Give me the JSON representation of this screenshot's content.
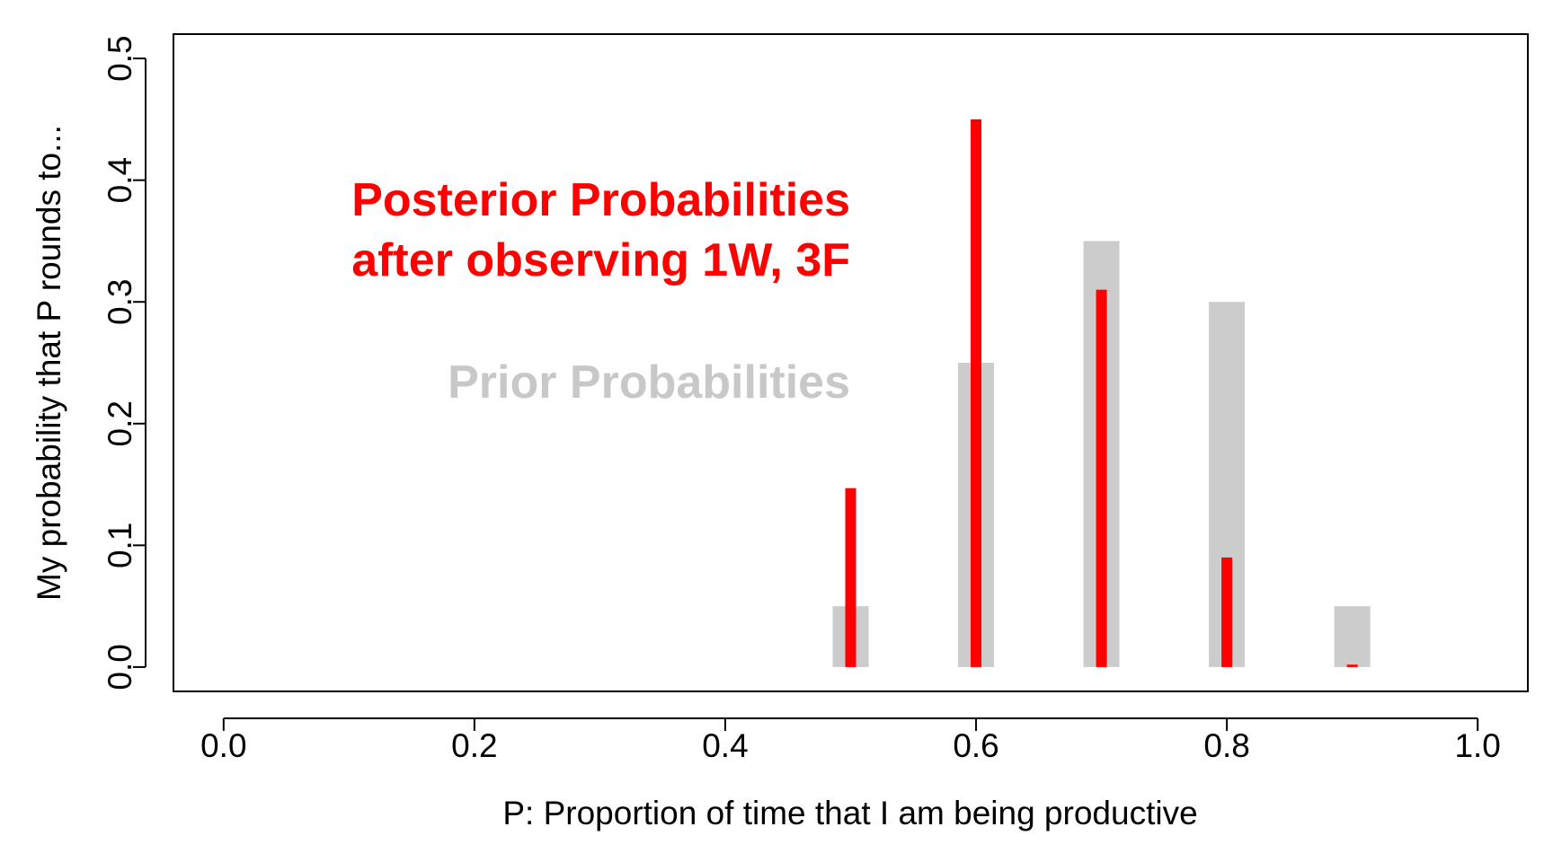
{
  "chart_data": {
    "type": "bar",
    "x": [
      0.5,
      0.6,
      0.7,
      0.8,
      0.9
    ],
    "series": [
      {
        "name": "Prior Probabilities",
        "values": [
          0.05,
          0.25,
          0.35,
          0.3,
          0.05
        ]
      },
      {
        "name": "Posterior Probabilities after observing 1W, 3F",
        "values": [
          0.147,
          0.45,
          0.31,
          0.09,
          0.002
        ]
      }
    ],
    "xlabel": "P: Proportion of time that I am being productive",
    "ylabel": "My probability that P rounds to...",
    "xlim": [
      -0.04,
      1.04
    ],
    "ylim": [
      -0.02,
      0.52
    ],
    "x_ticks": [
      0.0,
      0.2,
      0.4,
      0.6,
      0.8,
      1.0
    ],
    "x_tick_labels": [
      "0.0",
      "0.2",
      "0.4",
      "0.6",
      "0.8",
      "1.0"
    ],
    "y_ticks": [
      0.0,
      0.1,
      0.2,
      0.3,
      0.4,
      0.5
    ],
    "y_tick_labels": [
      "0.0",
      "0.1",
      "0.2",
      "0.3",
      "0.4",
      "0.5"
    ],
    "grid": false,
    "annotations": {
      "posterior_line1": "Posterior Probabilities",
      "posterior_line2": "after observing 1W, 3F",
      "prior": "Prior Probabilities"
    },
    "colors": {
      "prior": "#cccccc",
      "posterior": "#ff0000",
      "axis": "#000000",
      "prior_text": "#c8c8c8"
    }
  }
}
